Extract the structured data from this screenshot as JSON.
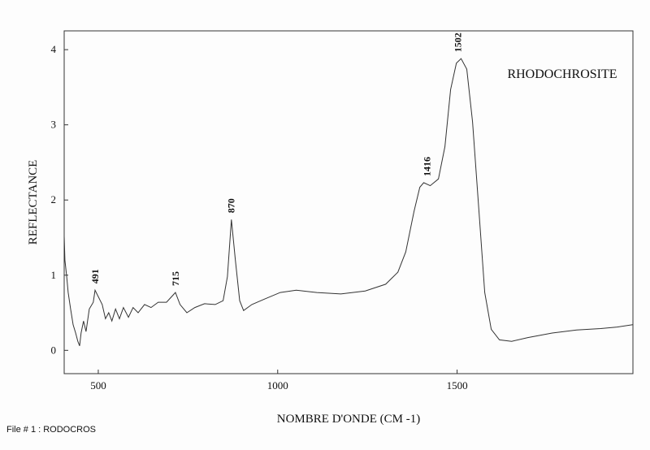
{
  "chart_data": {
    "type": "line",
    "title": "RHODOCHROSITE",
    "x_label": "NOMBRE D'ONDE (CM -1)",
    "y_label": "REFLECTANCE",
    "x": [
      405,
      407,
      412,
      416,
      423,
      430,
      437,
      443,
      448,
      452,
      459,
      466,
      475,
      486,
      491,
      511,
      520,
      529,
      538,
      548,
      559,
      570,
      584,
      597,
      611,
      629,
      647,
      667,
      690,
      715,
      728,
      747,
      769,
      796,
      826,
      848,
      860,
      871,
      882,
      894,
      905,
      928,
      962,
      1007,
      1052,
      1109,
      1176,
      1244,
      1301,
      1335,
      1357,
      1380,
      1396,
      1407,
      1425,
      1448,
      1466,
      1482,
      1498,
      1511,
      1527,
      1543,
      1561,
      1577,
      1595,
      1618,
      1652,
      1697,
      1765,
      1833,
      1900,
      1946,
      1989
    ],
    "values": [
      1.52,
      1.2,
      0.98,
      0.77,
      0.55,
      0.34,
      0.23,
      0.12,
      0.06,
      0.23,
      0.39,
      0.25,
      0.55,
      0.64,
      0.8,
      0.61,
      0.42,
      0.5,
      0.39,
      0.55,
      0.42,
      0.57,
      0.44,
      0.57,
      0.5,
      0.61,
      0.57,
      0.64,
      0.64,
      0.77,
      0.61,
      0.5,
      0.57,
      0.62,
      0.61,
      0.66,
      0.98,
      1.74,
      1.2,
      0.66,
      0.53,
      0.61,
      0.68,
      0.77,
      0.8,
      0.77,
      0.75,
      0.79,
      0.88,
      1.04,
      1.31,
      1.85,
      2.17,
      2.23,
      2.19,
      2.28,
      2.71,
      3.47,
      3.82,
      3.88,
      3.74,
      3.04,
      1.85,
      0.77,
      0.28,
      0.14,
      0.12,
      0.17,
      0.23,
      0.27,
      0.29,
      0.31,
      0.34
    ],
    "color": "#333333",
    "annotations": [
      "491",
      "715",
      "870",
      "1416",
      "1502"
    ],
    "xlim": [
      405,
      1990
    ],
    "ylim": [
      -0.31,
      4.25
    ],
    "xticks": [
      500,
      1000,
      1500
    ],
    "yticks": [
      0,
      1,
      2,
      3,
      4
    ],
    "grid": false
  },
  "footer": "File # 1 : RODOCROS"
}
